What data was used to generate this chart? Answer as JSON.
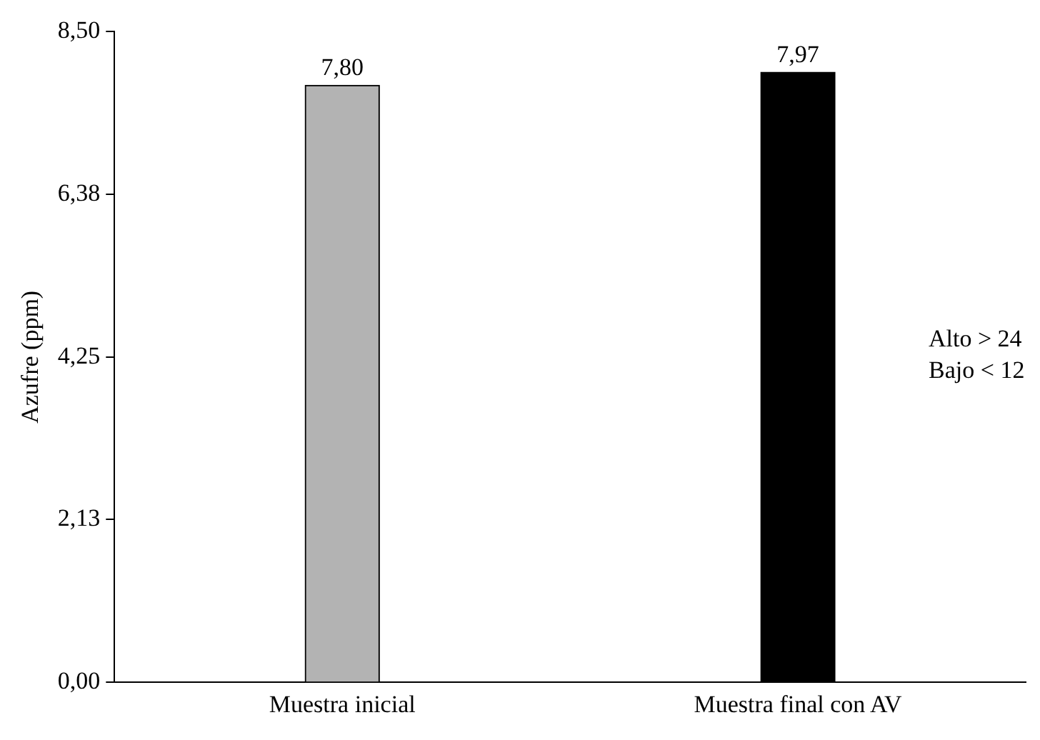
{
  "chart_data": {
    "type": "bar",
    "ylabel": "Azufre (ppm)",
    "categories": [
      "Muestra inicial",
      "Muestra final con AV"
    ],
    "values": [
      7.8,
      7.97
    ],
    "colors": [
      "#b3b3b3",
      "#000000"
    ],
    "value_labels": [
      "7,80",
      "7,97"
    ],
    "ylim": [
      0,
      8.5
    ],
    "yticks": [
      {
        "value": 0,
        "label": "0,00"
      },
      {
        "value": 2.13,
        "label": "2,13"
      },
      {
        "value": 4.25,
        "label": "4,25"
      },
      {
        "value": 6.38,
        "label": "6,38"
      },
      {
        "value": 8.5,
        "label": "8,50"
      }
    ],
    "grid": false,
    "legend": false,
    "annotations": [
      "Alto > 24",
      "Bajo < 12"
    ]
  }
}
